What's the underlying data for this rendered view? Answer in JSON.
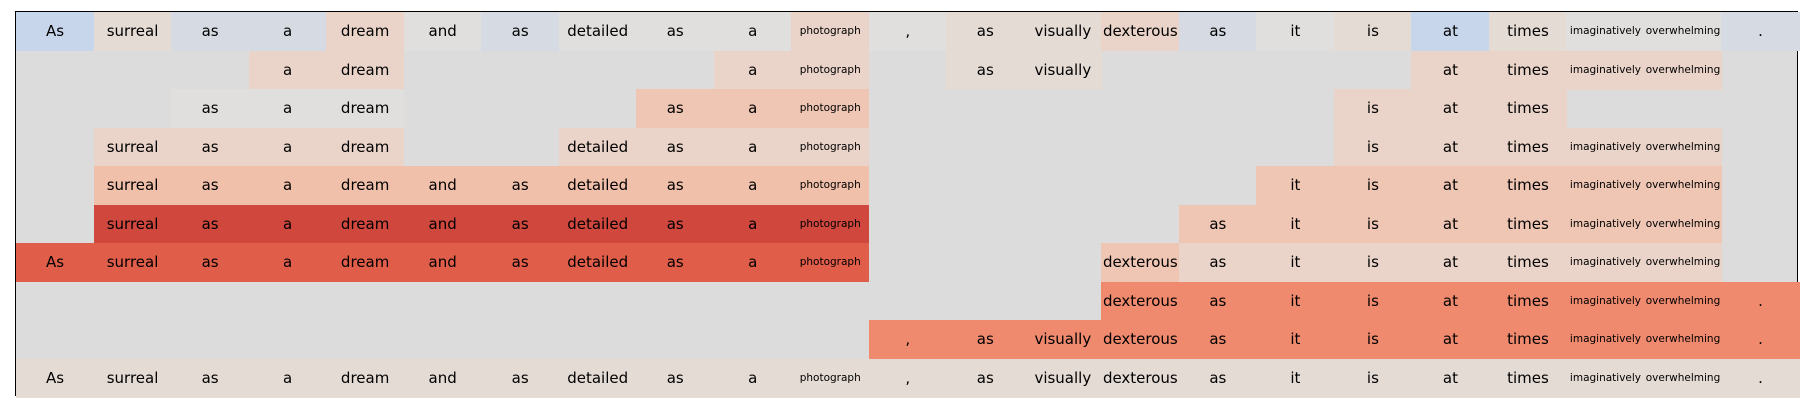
{
  "chart_data": {
    "type": "heatmap",
    "title": "",
    "xlabel": "",
    "ylabel": "",
    "tokens": [
      "As",
      "surreal",
      "as",
      "a",
      "dream",
      "and",
      "as",
      "detailed",
      "as",
      "a",
      "photograph",
      ",",
      "as",
      "visually",
      "dexterous",
      "as",
      "it",
      "is",
      "at",
      "times",
      "imaginatively",
      "overwhelming",
      "."
    ],
    "small_tokens": [
      10,
      20,
      21
    ],
    "palette": {
      "background": "#dcdcdc",
      "colors": {
        "blue": "#c8d6ec",
        "bluegray": "#d5dae3",
        "neutral": "#e0dfdd",
        "warmneutral": "#e5dbd5",
        "pale": "#ead3c8",
        "light": "#efc6b4",
        "lightmid": "#f1c0aa",
        "peach": "#f3b79e",
        "coral": "#ef8a6e",
        "red": "#e05d4a",
        "darkred": "#d0473e"
      }
    },
    "rows": [
      {
        "shown": [
          0,
          1,
          2,
          3,
          4,
          5,
          6,
          7,
          8,
          9,
          10,
          11,
          12,
          13,
          14,
          15,
          16,
          17,
          18,
          19,
          20,
          21,
          22
        ],
        "colors": [
          "blue",
          "warmneutral",
          "bluegray",
          "bluegray",
          "pale",
          "neutral",
          "bluegray",
          "neutral",
          "neutral",
          "neutral",
          "pale",
          "neutral",
          "warmneutral",
          "warmneutral",
          "pale",
          "bluegray",
          "neutral",
          "warmneutral",
          "blue",
          "warmneutral",
          "neutral",
          "neutral",
          "bluegray"
        ]
      },
      {
        "shown": [
          3,
          4,
          9,
          10,
          12,
          13,
          18,
          19,
          20,
          21
        ],
        "colors": {
          "3": "pale",
          "4": "pale",
          "9": "pale",
          "10": "pale",
          "12": "warmneutral",
          "13": "warmneutral",
          "18": "pale",
          "19": "pale",
          "20": "pale",
          "21": "pale"
        }
      },
      {
        "shown": [
          2,
          3,
          4,
          8,
          9,
          10,
          17,
          18,
          19
        ],
        "colors": {
          "2": "neutral",
          "3": "neutral",
          "4": "neutral",
          "8": "light",
          "9": "light",
          "10": "light",
          "17": "pale",
          "18": "pale",
          "19": "pale"
        }
      },
      {
        "shown": [
          1,
          2,
          3,
          4,
          7,
          8,
          9,
          10,
          17,
          18,
          19,
          20,
          21
        ],
        "colors": {
          "1": "pale",
          "2": "pale",
          "3": "pale",
          "4": "pale",
          "7": "pale",
          "8": "pale",
          "9": "pale",
          "10": "pale",
          "17": "pale",
          "18": "pale",
          "19": "pale",
          "20": "pale",
          "21": "pale"
        }
      },
      {
        "shown": [
          1,
          2,
          3,
          4,
          5,
          6,
          7,
          8,
          9,
          10,
          16,
          17,
          18,
          19,
          20,
          21
        ],
        "colors": {
          "1": "lightmid",
          "2": "lightmid",
          "3": "lightmid",
          "4": "lightmid",
          "5": "lightmid",
          "6": "lightmid",
          "7": "lightmid",
          "8": "lightmid",
          "9": "lightmid",
          "10": "lightmid",
          "16": "light",
          "17": "light",
          "18": "light",
          "19": "light",
          "20": "light",
          "21": "light"
        }
      },
      {
        "shown": [
          1,
          2,
          3,
          4,
          5,
          6,
          7,
          8,
          9,
          10,
          15,
          16,
          17,
          18,
          19,
          20,
          21
        ],
        "colors": {
          "1": "darkred",
          "2": "darkred",
          "3": "darkred",
          "4": "darkred",
          "5": "darkred",
          "6": "darkred",
          "7": "darkred",
          "8": "darkred",
          "9": "darkred",
          "10": "darkred",
          "15": "light",
          "16": "light",
          "17": "light",
          "18": "light",
          "19": "light",
          "20": "light",
          "21": "light"
        }
      },
      {
        "shown": [
          0,
          1,
          2,
          3,
          4,
          5,
          6,
          7,
          8,
          9,
          10,
          14,
          15,
          16,
          17,
          18,
          19,
          20,
          21
        ],
        "colors": {
          "0": "red",
          "1": "red",
          "2": "red",
          "3": "red",
          "4": "red",
          "5": "red",
          "6": "red",
          "7": "red",
          "8": "red",
          "9": "red",
          "10": "red",
          "14": "light",
          "15": "pale",
          "16": "pale",
          "17": "pale",
          "18": "pale",
          "19": "pale",
          "20": "pale",
          "21": "pale"
        }
      },
      {
        "shown": [
          14,
          15,
          16,
          17,
          18,
          19,
          20,
          21,
          22
        ],
        "colors": {
          "14": "coral",
          "15": "coral",
          "16": "coral",
          "17": "coral",
          "18": "coral",
          "19": "coral",
          "20": "coral",
          "21": "coral",
          "22": "coral"
        }
      },
      {
        "shown": [
          11,
          12,
          13,
          14,
          15,
          16,
          17,
          18,
          19,
          20,
          21,
          22
        ],
        "colors": {
          "11": "coral",
          "12": "coral",
          "13": "coral",
          "14": "coral",
          "15": "coral",
          "16": "coral",
          "17": "coral",
          "18": "coral",
          "19": "coral",
          "20": "coral",
          "21": "coral",
          "22": "coral"
        }
      },
      {
        "shown": [
          0,
          1,
          2,
          3,
          4,
          5,
          6,
          7,
          8,
          9,
          10,
          11,
          12,
          13,
          14,
          15,
          16,
          17,
          18,
          19,
          20,
          21,
          22
        ],
        "colors": "warmneutral"
      }
    ]
  }
}
